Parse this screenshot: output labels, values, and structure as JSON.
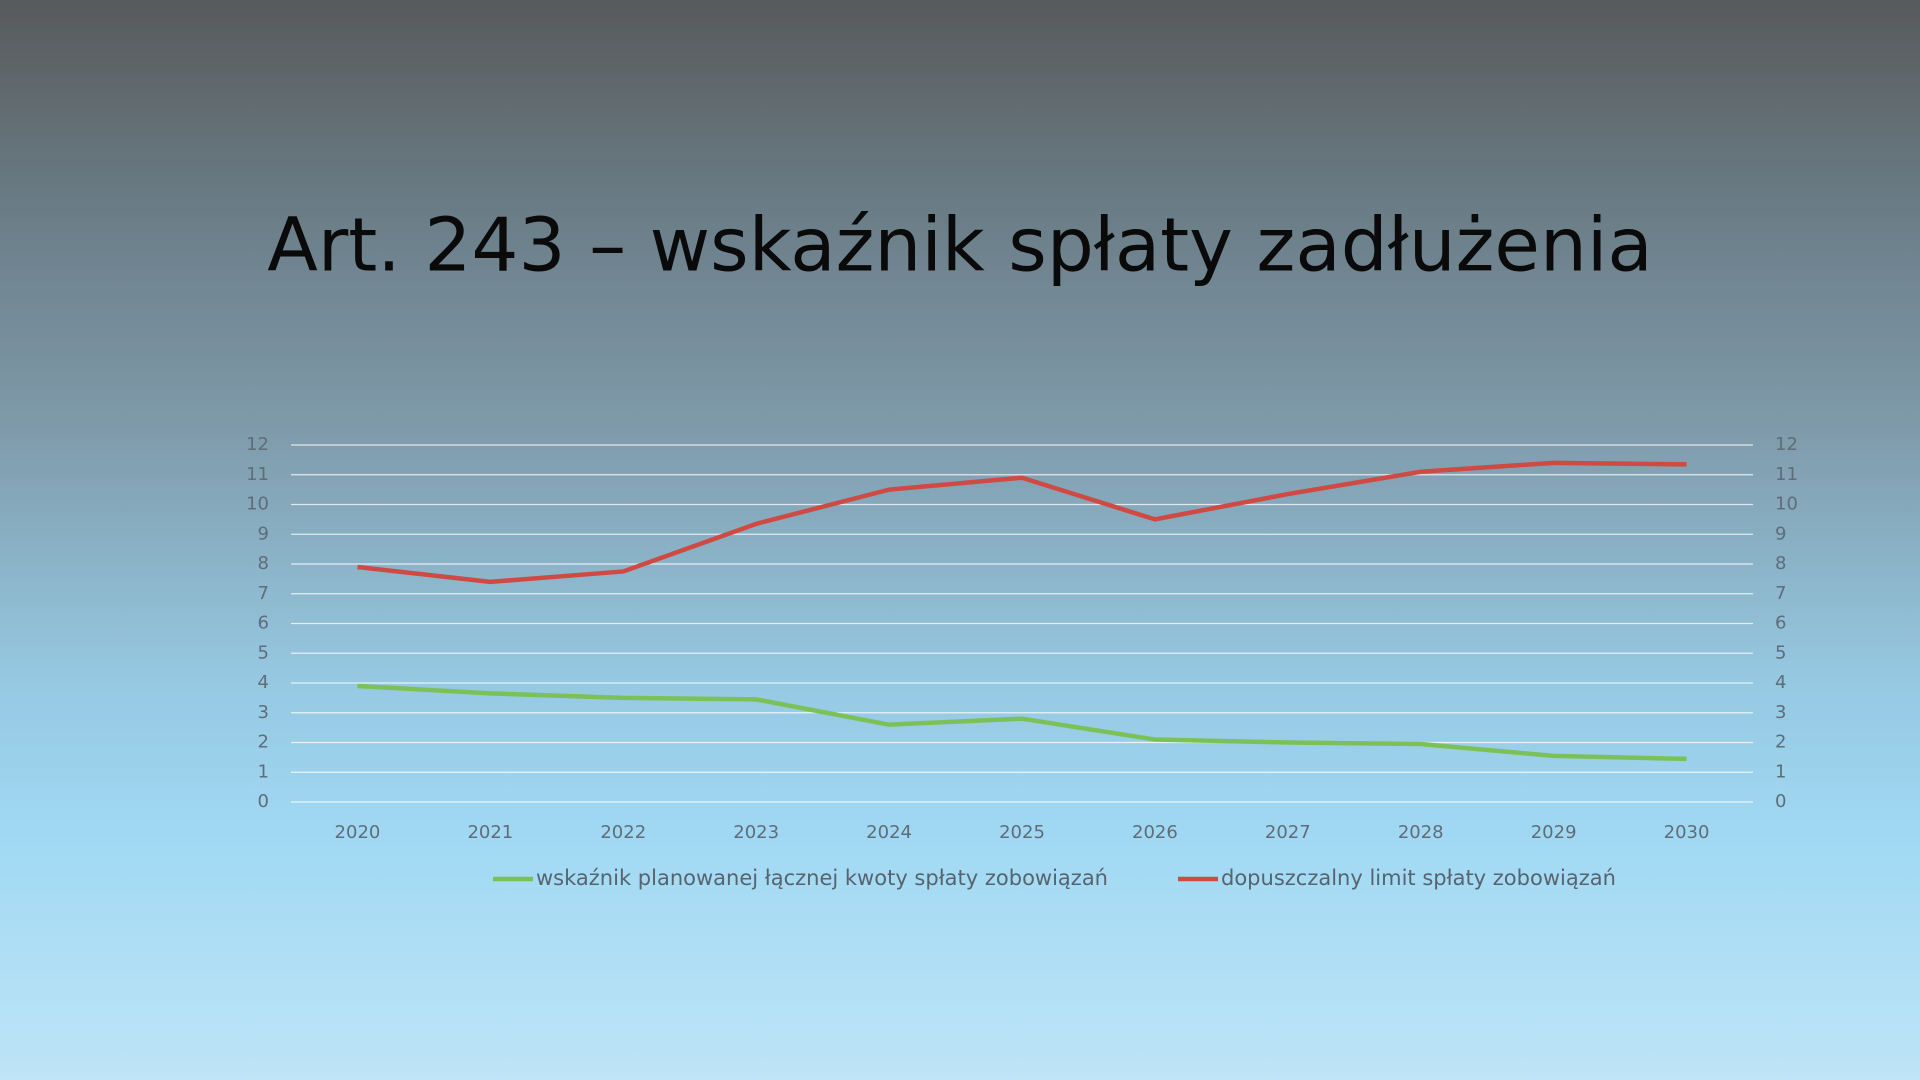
{
  "chart_data": {
    "type": "line",
    "title": "Art. 243 – wskaźnik spłaty zadłużenia",
    "categories": [
      "2020",
      "2021",
      "2022",
      "2023",
      "2024",
      "2025",
      "2026",
      "2027",
      "2028",
      "2029",
      "2030"
    ],
    "series": [
      {
        "name": "wskaźnik planowanej łącznej kwoty spłaty zobowiązań",
        "color": "#7cc158",
        "values": [
          3.9,
          3.65,
          3.5,
          3.45,
          2.6,
          2.8,
          2.1,
          2.0,
          1.95,
          1.55,
          1.45
        ]
      },
      {
        "name": "dopuszczalny limit spłaty zobowiązań",
        "color": "#cf4a43",
        "values": [
          7.9,
          7.4,
          7.75,
          9.35,
          10.5,
          10.9,
          9.5,
          10.35,
          11.1,
          11.4,
          11.35
        ]
      }
    ],
    "ylim": [
      0,
      12
    ],
    "yticks": [
      0,
      1,
      2,
      3,
      4,
      5,
      6,
      7,
      8,
      9,
      10,
      11,
      12
    ],
    "y2lim": [
      0,
      12
    ],
    "y2ticks": [
      0,
      1,
      2,
      3,
      4,
      5,
      6,
      7,
      8,
      9,
      10,
      11,
      12
    ],
    "grid": true,
    "legend": "bottom"
  }
}
